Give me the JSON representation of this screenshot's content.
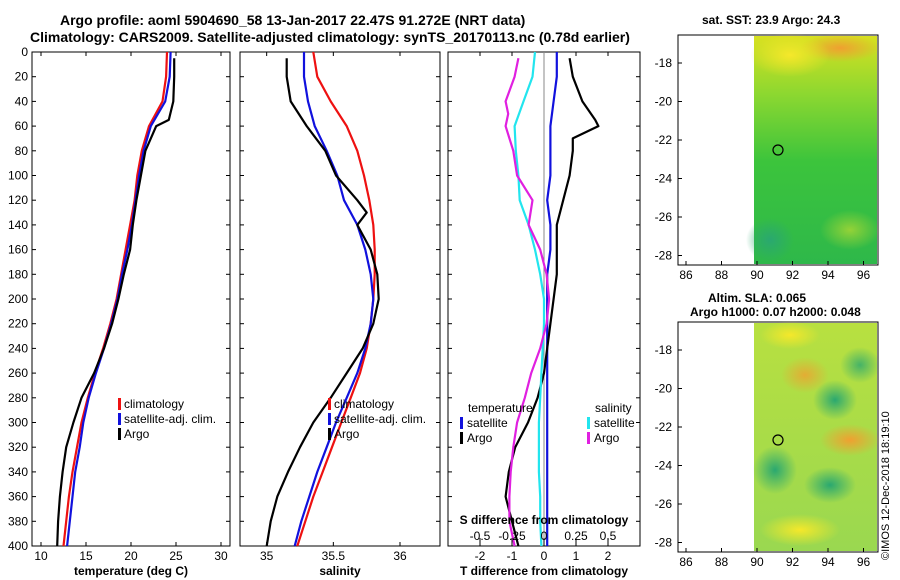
{
  "header": {
    "title_line1": "Argo profile: aoml 5904690_58 13-Jan-2017 22.47S 91.272E (NRT data)",
    "title_line2": "Climatology: CARS2009. Satellite-adjusted climatology: synTS_20170113.nc (0.78d earlier)"
  },
  "satellite": {
    "sst_title": "sat. SST: 23.9 Argo: 24.3",
    "sla_title1": "Altim. SLA: 0.065",
    "sla_title2": "Argo h1000: 0.07 h2000: 0.048",
    "lon_ticks": [
      "86",
      "88",
      "90",
      "92",
      "94",
      "96"
    ],
    "lat_ticks": [
      "-18",
      "-20",
      "-22",
      "-24",
      "-26",
      "-28"
    ]
  },
  "credit": "©IMOS 12-Dec-2018 18:19:10",
  "colors": {
    "climatology": "#ee1111",
    "satellite": "#1111dd",
    "argo": "#000000",
    "cyan": "#22e5ee",
    "magenta": "#e020e0"
  },
  "chart_data": [
    {
      "type": "line",
      "name": "temperature",
      "xlabel": "temperature (deg C)",
      "ylabel": "",
      "xlim": [
        9,
        31
      ],
      "ylim": [
        400,
        0
      ],
      "x_ticks": [
        "10",
        "15",
        "20",
        "25",
        "30"
      ],
      "y_ticks": [
        "0",
        "20",
        "40",
        "60",
        "80",
        "100",
        "120",
        "140",
        "160",
        "180",
        "200",
        "220",
        "240",
        "260",
        "280",
        "300",
        "320",
        "340",
        "360",
        "380",
        "400"
      ],
      "legend": [
        "climatology",
        "satellite-adj. clim.",
        "Argo"
      ],
      "series": [
        {
          "name": "climatology",
          "depth": [
            0,
            20,
            40,
            60,
            80,
            100,
            120,
            140,
            160,
            180,
            200,
            220,
            240,
            260,
            280,
            300,
            320,
            340,
            360,
            380,
            400
          ],
          "values": [
            24.0,
            23.9,
            23.5,
            22.0,
            21.2,
            20.7,
            20.4,
            19.9,
            19.4,
            18.9,
            18.4,
            17.7,
            16.9,
            16.0,
            15.2,
            14.5,
            14.0,
            13.5,
            13.1,
            12.8,
            12.5
          ]
        },
        {
          "name": "satellite-adj. clim.",
          "depth": [
            0,
            20,
            40,
            60,
            80,
            100,
            120,
            140,
            160,
            180,
            200,
            220,
            240,
            260,
            280,
            300,
            320,
            340,
            360,
            380,
            400
          ],
          "values": [
            24.4,
            24.3,
            23.8,
            22.2,
            21.4,
            20.9,
            20.5,
            20.1,
            19.6,
            19.0,
            18.5,
            17.8,
            17.0,
            16.1,
            15.3,
            14.7,
            14.3,
            13.8,
            13.5,
            13.2,
            12.9
          ]
        },
        {
          "name": "Argo",
          "depth": [
            5,
            20,
            40,
            55,
            60,
            80,
            100,
            120,
            140,
            160,
            180,
            200,
            220,
            240,
            260,
            280,
            300,
            320,
            340,
            360,
            380,
            400
          ],
          "values": [
            24.8,
            24.8,
            24.7,
            24.2,
            22.8,
            21.6,
            21.1,
            20.6,
            20.2,
            19.9,
            19.2,
            18.6,
            17.9,
            17.0,
            15.9,
            14.5,
            13.6,
            12.8,
            12.4,
            12.1,
            11.9,
            11.8
          ]
        }
      ]
    },
    {
      "type": "line",
      "name": "salinity",
      "xlabel": "salinity",
      "xlim": [
        34.8,
        36.3
      ],
      "ylim": [
        400,
        0
      ],
      "x_ticks": [
        "35",
        "35.5",
        "36"
      ],
      "legend": [
        "climatology",
        "satellite-adj. clim.",
        "Argo"
      ],
      "series": [
        {
          "name": "climatology",
          "depth": [
            0,
            20,
            40,
            60,
            80,
            100,
            120,
            140,
            160,
            180,
            200,
            220,
            240,
            260,
            280,
            300,
            320,
            340,
            360,
            380,
            400
          ],
          "values": [
            35.35,
            35.38,
            35.48,
            35.6,
            35.68,
            35.73,
            35.77,
            35.8,
            35.81,
            35.81,
            35.8,
            35.78,
            35.75,
            35.7,
            35.63,
            35.56,
            35.49,
            35.42,
            35.35,
            35.29,
            35.23
          ]
        },
        {
          "name": "satellite-adj. clim.",
          "depth": [
            0,
            20,
            40,
            60,
            80,
            100,
            120,
            140,
            160,
            180,
            200,
            220,
            240,
            260,
            280,
            300,
            320,
            340,
            360,
            380,
            400
          ],
          "values": [
            35.28,
            35.28,
            35.31,
            35.36,
            35.45,
            35.53,
            35.58,
            35.68,
            35.74,
            35.78,
            35.8,
            35.78,
            35.74,
            35.68,
            35.6,
            35.52,
            35.45,
            35.38,
            35.32,
            35.26,
            35.21
          ]
        },
        {
          "name": "Argo",
          "depth": [
            5,
            20,
            40,
            60,
            80,
            100,
            120,
            130,
            140,
            160,
            180,
            200,
            220,
            240,
            260,
            280,
            300,
            320,
            340,
            360,
            380,
            400
          ],
          "values": [
            35.15,
            35.15,
            35.18,
            35.3,
            35.44,
            35.52,
            35.68,
            35.75,
            35.68,
            35.78,
            35.83,
            35.84,
            35.8,
            35.72,
            35.6,
            35.48,
            35.35,
            35.25,
            35.16,
            35.08,
            35.03,
            35.0
          ]
        }
      ]
    },
    {
      "type": "line",
      "name": "difference",
      "xlabel": "T difference from climatology",
      "top_label": "S difference from climatology",
      "xlim": [
        -3,
        3
      ],
      "ylim": [
        400,
        0
      ],
      "x_ticks": [
        "-2",
        "-1",
        "0",
        "1",
        "2"
      ],
      "s_ticks": [
        "-0.5",
        "-0.25",
        "0",
        "0.25",
        "0.5"
      ],
      "legend_temperature_title": "temperature",
      "legend_salinity_title": "salinity",
      "legend_temperature": [
        "satellite",
        "Argo"
      ],
      "legend_salinity": [
        "satellite",
        "Argo"
      ],
      "series": [
        {
          "name": "temperature satellite",
          "depth": [
            0,
            20,
            40,
            60,
            80,
            100,
            120,
            140,
            160,
            180,
            200,
            220,
            240,
            260,
            280,
            300,
            320,
            340,
            360,
            380,
            400
          ],
          "values": [
            0.4,
            0.4,
            0.3,
            0.2,
            0.2,
            0.2,
            0.1,
            0.2,
            0.2,
            0.1,
            0.1,
            0.1,
            0.1,
            0.1,
            0.1,
            0.1,
            0.1,
            0.1,
            0.1,
            0.1,
            0.1
          ]
        },
        {
          "name": "temperature Argo",
          "depth": [
            5,
            20,
            40,
            55,
            60,
            70,
            80,
            100,
            120,
            140,
            160,
            180,
            200,
            220,
            240,
            260,
            280,
            300,
            320,
            340,
            360,
            380,
            400
          ],
          "values": [
            0.8,
            0.9,
            1.2,
            1.6,
            1.7,
            0.9,
            0.9,
            0.8,
            0.6,
            0.4,
            0.4,
            0.4,
            0.3,
            0.2,
            0.1,
            0.0,
            -0.2,
            -0.5,
            -0.9,
            -1.1,
            -1.2,
            -1.0,
            -0.8
          ]
        },
        {
          "name": "salinity satellite",
          "depth": [
            0,
            20,
            40,
            60,
            80,
            100,
            120,
            140,
            160,
            180,
            200,
            220,
            240,
            260,
            280,
            300,
            320,
            340,
            360,
            380,
            400
          ],
          "values": [
            -0.07,
            -0.09,
            -0.16,
            -0.23,
            -0.22,
            -0.2,
            -0.19,
            -0.12,
            -0.07,
            -0.03,
            0.0,
            0.0,
            -0.01,
            -0.02,
            -0.03,
            -0.04,
            -0.04,
            -0.04,
            -0.03,
            -0.03,
            -0.02
          ]
        },
        {
          "name": "salinity Argo",
          "depth": [
            5,
            20,
            40,
            50,
            60,
            80,
            100,
            120,
            140,
            160,
            180,
            200,
            220,
            240,
            260,
            280,
            300,
            320,
            340,
            360,
            380,
            400
          ],
          "values": [
            -0.2,
            -0.23,
            -0.3,
            -0.28,
            -0.3,
            -0.24,
            -0.21,
            -0.09,
            -0.12,
            -0.03,
            0.02,
            0.04,
            0.02,
            -0.03,
            -0.1,
            -0.15,
            -0.21,
            -0.24,
            -0.26,
            -0.27,
            -0.27,
            -0.23
          ]
        }
      ]
    }
  ]
}
